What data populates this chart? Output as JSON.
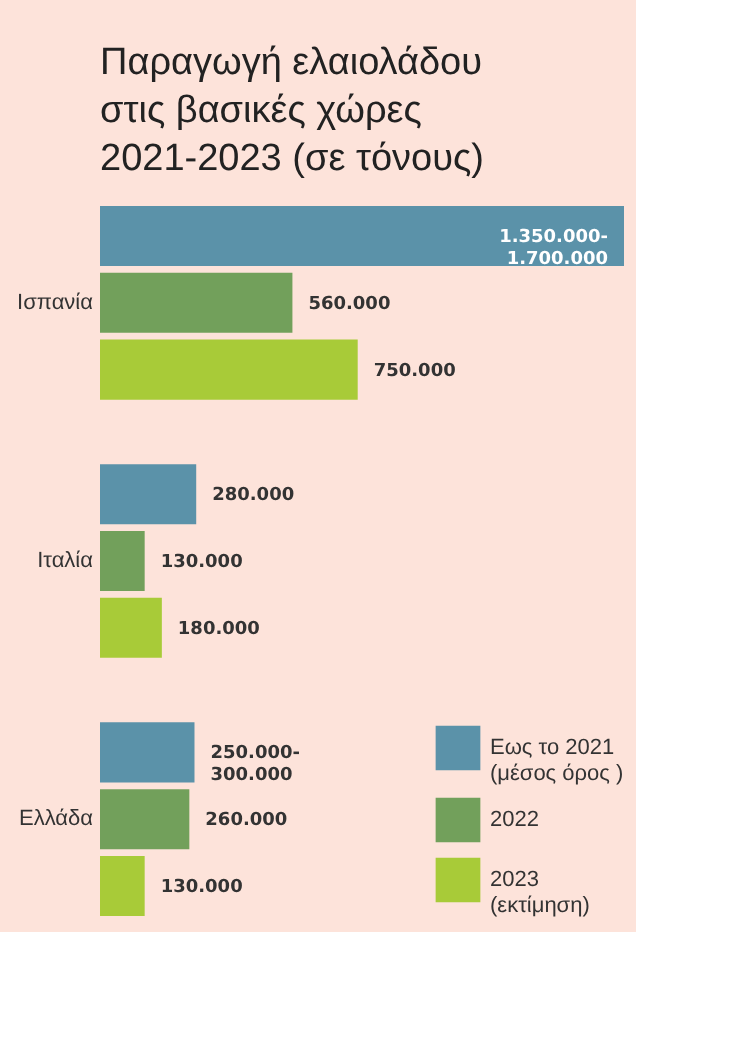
{
  "chart_data": {
    "type": "bar",
    "orientation": "horizontal",
    "title": "Παραγωγή ελαιολάδου στις βασικές χώρες 2021-2023 (σε τόνους)",
    "categories": [
      "Ισπανία",
      "Ιταλία",
      "Ελλάδα"
    ],
    "series": [
      {
        "name": "Εως το 2021 (μέσος όρος )",
        "color": "#5b92a9",
        "values": [
          1525000,
          280000,
          275000
        ],
        "value_labels": [
          "1.350.000-1.700.000",
          "280.000",
          "250.000-300.000"
        ]
      },
      {
        "name": "2022",
        "color": "#72a05b",
        "values": [
          560000,
          130000,
          260000
        ],
        "value_labels": [
          "560.000",
          "130.000",
          "260.000"
        ]
      },
      {
        "name": "2023 (εκτίμηση)",
        "color": "#a8cb38",
        "values": [
          750000,
          180000,
          130000
        ],
        "value_labels": [
          "750.000",
          "180.000",
          "130.000"
        ]
      }
    ],
    "legend": "bottom right",
    "grid": false
  }
}
